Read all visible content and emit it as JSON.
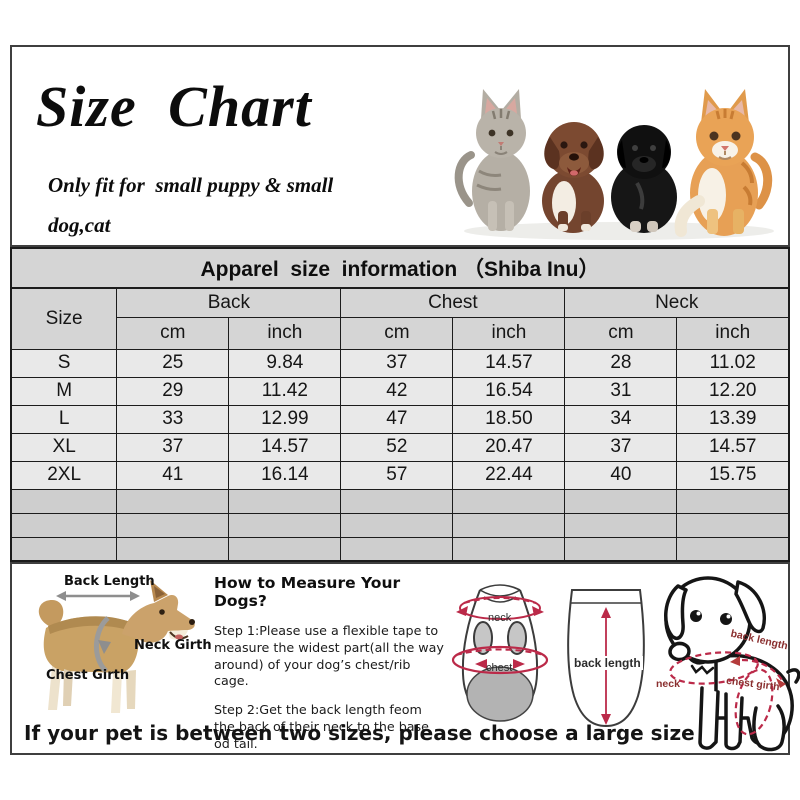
{
  "colors": {
    "accent_red": "#bb2a49",
    "diagram_label_red": "#8a2f2f",
    "table_header_bg": "#d5d5d5",
    "table_row_bg": "#e9e9e9",
    "table_empty_row_bg": "#cecece",
    "table_border": "#1c1c1c",
    "box_border": "#3f3f3f"
  },
  "header": {
    "title": "Size Chart",
    "subtitle_line1": "Only fit for  small puppy & small",
    "subtitle_line2": "dog,cat"
  },
  "chart_data": {
    "type": "table",
    "title": "Apparel  size  information （Shiba Inu）",
    "size_header": "Size",
    "column_groups": [
      "Back",
      "Chest",
      "Neck"
    ],
    "unit_headers": [
      "cm",
      "inch"
    ],
    "rows": [
      {
        "size": "S",
        "values": [
          "25",
          "9.84",
          "37",
          "14.57",
          "28",
          "11.02"
        ]
      },
      {
        "size": "M",
        "values": [
          "29",
          "11.42",
          "42",
          "16.54",
          "31",
          "12.20"
        ]
      },
      {
        "size": "L",
        "values": [
          "33",
          "12.99",
          "47",
          "18.50",
          "34",
          "13.39"
        ]
      },
      {
        "size": "XL",
        "values": [
          "37",
          "14.57",
          "52",
          "20.47",
          "37",
          "14.57"
        ]
      },
      {
        "size": "2XL",
        "values": [
          "41",
          "16.14",
          "57",
          "22.44",
          "40",
          "15.75"
        ]
      }
    ],
    "empty_rows": 3
  },
  "dog_diagram": {
    "back_length_label": "Back Length",
    "neck_girth_label": "Neck Girth",
    "chest_girth_label": "Chest Girth"
  },
  "measure_guide": {
    "heading": "How to Measure Your Dogs?",
    "step1": "Step 1:Please use a flexible tape to measure the widest part(all the way around) of your dog’s chest/rib cage.",
    "step2": "Step 2:Get the back length feom the back of their neck to the base od tail."
  },
  "garment_diagram": {
    "neck_label": "neck",
    "chest_label": "chest",
    "back_length_label": "back length"
  },
  "puppy_diagram": {
    "neck_label": "neck",
    "back_length_label": "back length",
    "chest_girth_label": "chest girth"
  },
  "footer": {
    "note": "If your pet is between two sizes, please choose a large size"
  }
}
